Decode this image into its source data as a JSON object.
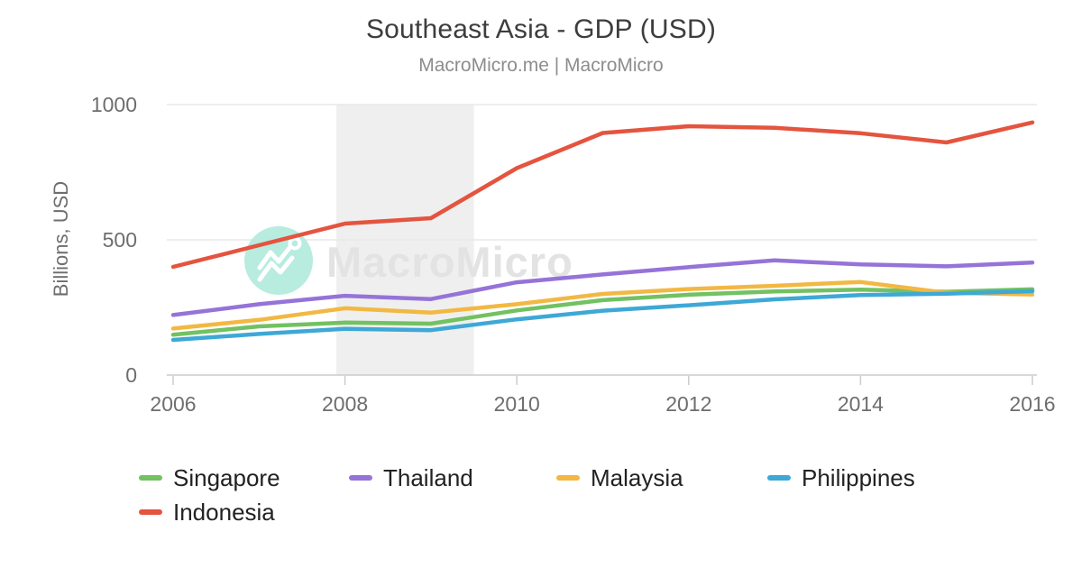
{
  "chart_data": {
    "type": "line",
    "title": "Southeast Asia - GDP (USD)",
    "subtitle": "MacroMicro.me | MacroMicro",
    "ylabel": "Billions, USD",
    "ylim": [
      0,
      1000
    ],
    "y_ticks": [
      0,
      500,
      1000
    ],
    "x_ticks": [
      2006,
      2008,
      2010,
      2012,
      2014,
      2016
    ],
    "x": [
      2006,
      2007,
      2008,
      2009,
      2010,
      2011,
      2012,
      2013,
      2014,
      2015,
      2016
    ],
    "grid": true,
    "legend_position": "bottom",
    "shaded_band": {
      "x_start": 2007.9,
      "x_end": 2009.5,
      "color": "#efefef"
    },
    "series": [
      {
        "name": "Singapore",
        "color": "#72c162",
        "values": [
          149,
          180,
          194,
          190,
          239,
          277,
          297,
          309,
          316,
          308,
          317
        ]
      },
      {
        "name": "Thailand",
        "color": "#9673d8",
        "values": [
          222,
          262,
          293,
          281,
          343,
          372,
          399,
          424,
          409,
          402,
          416
        ]
      },
      {
        "name": "Malaysia",
        "color": "#f2b843",
        "values": [
          172,
          204,
          247,
          231,
          262,
          300,
          318,
          330,
          344,
          304,
          298
        ]
      },
      {
        "name": "Philippines",
        "color": "#3ea8d6",
        "values": [
          130,
          152,
          171,
          166,
          206,
          238,
          258,
          280,
          296,
          301,
          310
        ]
      },
      {
        "name": "Indonesia",
        "color": "#e4543f",
        "values": [
          400,
          480,
          560,
          580,
          765,
          895,
          920,
          914,
          894,
          860,
          934
        ]
      }
    ]
  },
  "watermark": {
    "text": "MacroMicro",
    "circle_color": "#b7ecdf",
    "logo_color": "#ffffff",
    "text_color": "#e3e3e3",
    "logo": "macromicro-mountain-logo"
  },
  "style_colors": {
    "grid_line": "#e8e8e8",
    "axis_line": "#cccccc",
    "tick_label": "#6e6e6e",
    "title": "#3d3d3d",
    "subtitle": "#8d8d8d",
    "legend_text": "#222222"
  }
}
